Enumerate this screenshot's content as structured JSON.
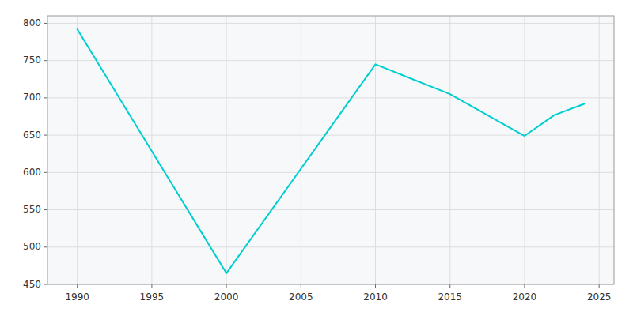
{
  "chart_data": {
    "type": "line",
    "x": [
      1990,
      2000,
      2010,
      2015,
      2020,
      2022,
      2024
    ],
    "values": [
      792,
      465,
      745,
      705,
      649,
      677,
      692
    ],
    "color": "#00CED1",
    "xlim": [
      1988,
      2026
    ],
    "ylim": [
      450,
      810
    ],
    "xticks": [
      1990,
      1995,
      2000,
      2005,
      2010,
      2015,
      2020,
      2025
    ],
    "yticks": [
      450,
      500,
      550,
      600,
      650,
      700,
      750,
      800
    ],
    "grid": true
  }
}
